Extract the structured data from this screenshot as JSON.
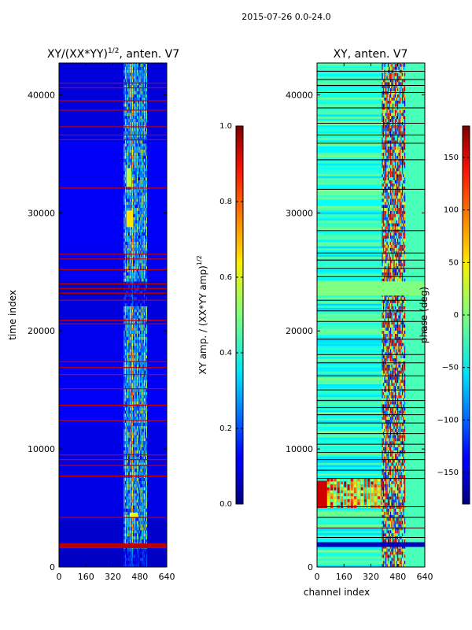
{
  "suptitle": "2015-07-26 0.0-24.0",
  "chart_data": [
    {
      "type": "heatmap",
      "title": "XY/(XX*YY)^{1/2}, anten. V7",
      "title_main": "XY/(XX*YY)",
      "title_exp": "1/2",
      "title_tail": ", anten. V7",
      "xlabel": "",
      "ylabel": "time index",
      "xlim": [
        0,
        640
      ],
      "ylim": [
        0,
        42700
      ],
      "xticks": [
        0,
        160,
        320,
        480,
        640
      ],
      "yticks": [
        0,
        10000,
        20000,
        30000,
        40000
      ],
      "colormap": "jet",
      "colorbar": {
        "label": "XY amp. / (XX*YY amp)^{1/2}",
        "label_main": "XY amp. / (XX*YY amp)",
        "label_exp": "1/2",
        "range": [
          0.0,
          1.0
        ],
        "ticks": [
          "0.0",
          "0.2",
          "0.4",
          "0.6",
          "0.8",
          "1.0"
        ],
        "tick_values": [
          0.0,
          0.2,
          0.4,
          0.6,
          0.8,
          1.0
        ]
      },
      "background_value": 0.1,
      "bright_channel_range": [
        385,
        520
      ],
      "red_flag_rows": [
        1650,
        1900,
        4200,
        7700,
        8600,
        9100,
        9500,
        12400,
        13700,
        15100,
        16300,
        16900,
        17400,
        20600,
        20900,
        22600,
        23200,
        23600,
        24000,
        25200,
        26100,
        26500,
        32100,
        36200,
        36600,
        37300,
        38700,
        39500,
        40600,
        41000
      ]
    },
    {
      "type": "heatmap",
      "title": "XY, anten. V7",
      "xlabel": "channel index",
      "ylabel": "",
      "xlim": [
        0,
        640
      ],
      "ylim": [
        0,
        42700
      ],
      "xticks": [
        0,
        160,
        320,
        480,
        640
      ],
      "yticks": [
        0,
        10000,
        20000,
        30000,
        40000
      ],
      "colormap": "jet",
      "colorbar": {
        "label": "phase (deg)",
        "range": [
          -180,
          180
        ],
        "ticks": [
          "−150",
          "−100",
          "−50",
          "0",
          "50",
          "100",
          "150"
        ],
        "tick_values": [
          -150,
          -100,
          -50,
          0,
          50,
          100,
          150
        ]
      },
      "background_value": -20,
      "bright_channel_range": [
        385,
        520
      ],
      "flag_bands": [
        [
          1700,
          2100
        ],
        [
          23000,
          24200
        ],
        [
          36000,
          36700
        ]
      ]
    }
  ]
}
